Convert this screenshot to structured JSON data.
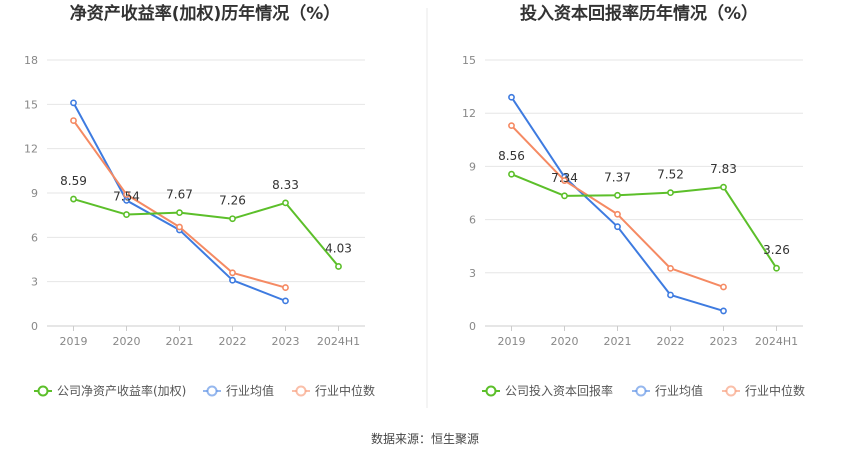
{
  "source": "数据来源：恒生聚源",
  "colors": {
    "company": "#5cbf2a",
    "avg": "#3e7be0",
    "median": "#f58a63",
    "grid": "#e6e6e6",
    "axis": "#cccccc",
    "divider": "#e8e8e8"
  },
  "chart_data": [
    {
      "type": "line",
      "title": "净资产收益率(加权)历年情况（%）",
      "categories": [
        "2019",
        "2020",
        "2021",
        "2022",
        "2023",
        "2024H1"
      ],
      "ylim": [
        0,
        18
      ],
      "yticks": [
        0,
        3,
        6,
        9,
        12,
        15,
        18
      ],
      "grid": true,
      "legend_position": "bottom",
      "series": [
        {
          "name": "公司净资产收益率(加权)",
          "role": "company",
          "values": [
            8.59,
            7.54,
            7.67,
            7.26,
            8.33,
            4.03
          ],
          "labels": [
            "8.59",
            "7.54",
            "7.67",
            "7.26",
            "8.33",
            "4.03"
          ]
        },
        {
          "name": "行业均值",
          "role": "avg",
          "values": [
            15.1,
            8.5,
            6.5,
            3.1,
            1.7,
            null
          ]
        },
        {
          "name": "行业中位数",
          "role": "median",
          "values": [
            13.9,
            8.9,
            6.7,
            3.6,
            2.6,
            null
          ]
        }
      ]
    },
    {
      "type": "line",
      "title": "投入资本回报率历年情况（%）",
      "categories": [
        "2019",
        "2020",
        "2021",
        "2022",
        "2023",
        "2024H1"
      ],
      "ylim": [
        0,
        15
      ],
      "yticks": [
        0,
        3,
        6,
        9,
        12,
        15
      ],
      "grid": true,
      "legend_position": "bottom",
      "series": [
        {
          "name": "公司投入资本回报率",
          "role": "company",
          "values": [
            8.56,
            7.34,
            7.37,
            7.52,
            7.83,
            3.26
          ],
          "labels": [
            "8.56",
            "7.34",
            "7.37",
            "7.52",
            "7.83",
            "3.26"
          ]
        },
        {
          "name": "行业均值",
          "role": "avg",
          "values": [
            12.9,
            8.4,
            5.6,
            1.75,
            0.85,
            null
          ]
        },
        {
          "name": "行业中位数",
          "role": "median",
          "values": [
            11.3,
            8.2,
            6.3,
            3.25,
            2.2,
            null
          ]
        }
      ]
    }
  ]
}
